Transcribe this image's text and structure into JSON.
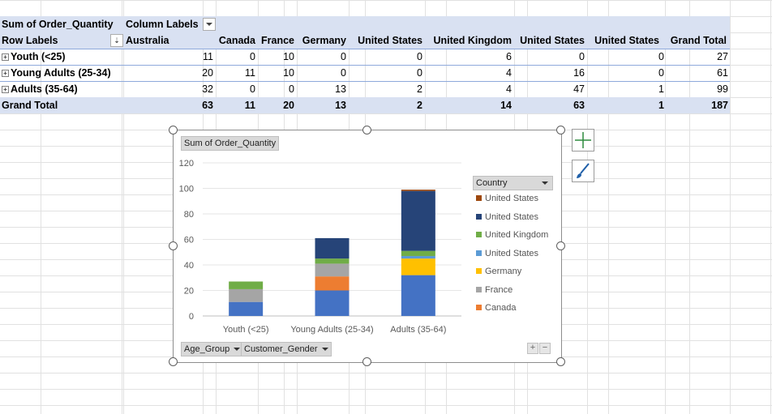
{
  "pivot": {
    "value_field": "Sum of Order_Quantity",
    "column_labels": "Column Labels",
    "row_labels": "Row Labels",
    "columns": [
      "Australia",
      "Canada",
      "France",
      "Germany",
      "United  States",
      "United Kingdom",
      "United States",
      "United States",
      "Grand Total"
    ],
    "rows": [
      {
        "label": "Youth (<25)",
        "values": [
          "11",
          "0",
          "10",
          "0",
          "0",
          "6",
          "0",
          "0",
          "27"
        ]
      },
      {
        "label": "Young Adults (25-34)",
        "values": [
          "20",
          "11",
          "10",
          "0",
          "0",
          "4",
          "16",
          "0",
          "61"
        ]
      },
      {
        "label": "Adults (35-64)",
        "values": [
          "32",
          "0",
          "0",
          "13",
          "2",
          "4",
          "47",
          "1",
          "99"
        ]
      }
    ],
    "grand_total": {
      "label": "Grand Total",
      "values": [
        "63",
        "11",
        "20",
        "13",
        "2",
        "14",
        "63",
        "1",
        "187"
      ]
    },
    "expand_symbol": "⊞"
  },
  "chart": {
    "field_chip": "Sum of Order_Quantity",
    "legend_field": "Country",
    "axis_chips": [
      "Age_Group",
      "Customer_Gender"
    ],
    "zoom_in": "+",
    "zoom_out": "−"
  },
  "chart_data": {
    "type": "bar",
    "stacked": true,
    "categories": [
      "Youth (<25)",
      "Young Adults (25-34)",
      "Adults (35-64)"
    ],
    "ylim": [
      0,
      120
    ],
    "yticks": [
      0,
      20,
      40,
      60,
      80,
      100,
      120
    ],
    "series": [
      {
        "name": "Australia",
        "color": "#4472c4",
        "values": [
          11,
          20,
          32
        ]
      },
      {
        "name": "Canada",
        "color": "#ed7d31",
        "values": [
          0,
          11,
          0
        ]
      },
      {
        "name": "France",
        "color": "#a5a5a5",
        "values": [
          10,
          10,
          0
        ]
      },
      {
        "name": "Germany",
        "color": "#ffc000",
        "values": [
          0,
          0,
          13
        ]
      },
      {
        "name": "United  States",
        "color": "#5b9bd5",
        "values": [
          0,
          0,
          2
        ]
      },
      {
        "name": "United Kingdom",
        "color": "#70ad47",
        "values": [
          6,
          4,
          4
        ]
      },
      {
        "name": "United States",
        "color": "#264478",
        "values": [
          0,
          16,
          47
        ]
      },
      {
        "name": "United States",
        "color": "#9e480e",
        "values": [
          0,
          0,
          1
        ]
      }
    ],
    "legend": [
      {
        "name": "United States",
        "color": "#9e480e"
      },
      {
        "name": "United States",
        "color": "#264478"
      },
      {
        "name": "United Kingdom",
        "color": "#70ad47"
      },
      {
        "name": "United  States",
        "color": "#5b9bd5"
      },
      {
        "name": "Germany",
        "color": "#ffc000"
      },
      {
        "name": "France",
        "color": "#a5a5a5"
      },
      {
        "name": "Canada",
        "color": "#ed7d31"
      }
    ],
    "legend_placement": "right"
  }
}
